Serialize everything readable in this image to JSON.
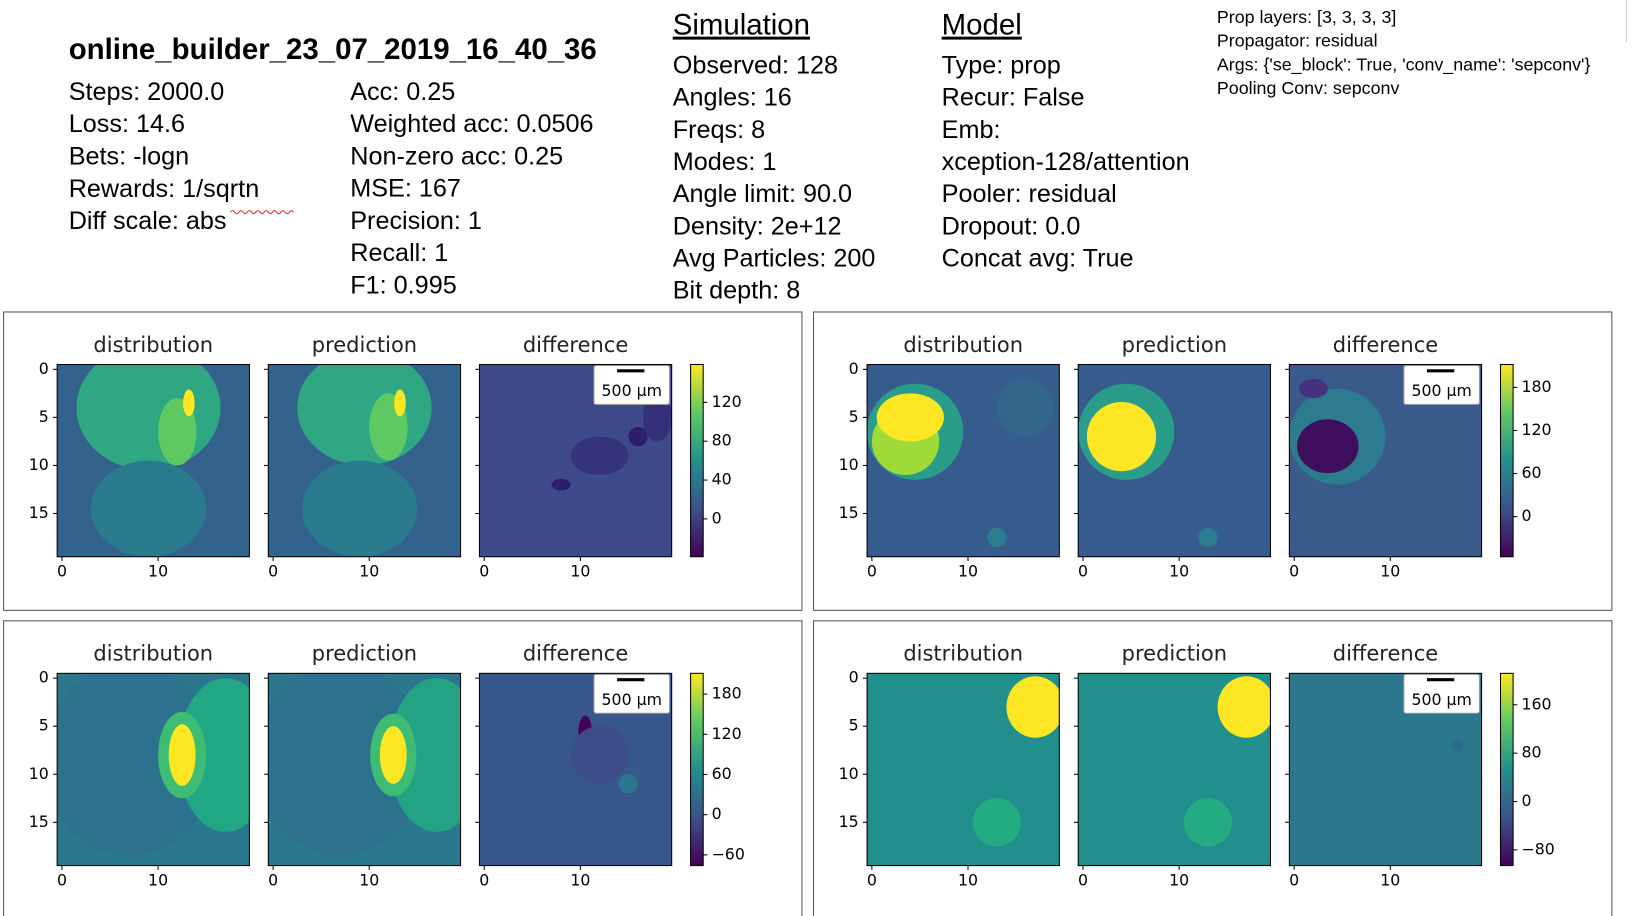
{
  "header": {
    "title": "online_builder_23_07_2019_16_40_36"
  },
  "training": [
    "Steps: 2000.0",
    "Loss: 14.6",
    "Bets: -logn",
    "Rewards: 1/sqrtn",
    "Diff scale: abs"
  ],
  "metrics": [
    "Acc: 0.25",
    "Weighted acc: 0.0506",
    "Non-zero acc: 0.25",
    "MSE: 167",
    "Precision: 1",
    "Recall: 1",
    "F1: 0.995"
  ],
  "simulation": {
    "heading": "Simulation",
    "items": [
      "Observed: 128",
      "Angles: 16",
      "Freqs: 8",
      "Modes: 1",
      "Angle limit: 90.0",
      "Density: 2e+12",
      "Avg Particles: 200",
      "Bit depth: 8"
    ]
  },
  "model": {
    "heading": "Model",
    "items": [
      "Type: prop",
      "Recur: False",
      "Emb:",
      "xception-128/attention",
      "Pooler: residual",
      "Dropout: 0.0",
      "Concat avg: True"
    ]
  },
  "prop_info": [
    "Prop layers: [3, 3, 3, 3]",
    "Propagator: residual",
    "Args: {'se_block': True, 'conv_name': 'sepconv'}",
    "Pooling Conv: sepconv"
  ],
  "panels": [
    {
      "titles": [
        "distribution",
        "prediction",
        "difference"
      ],
      "xlim": [
        -0.5,
        19.5
      ],
      "ylim": [
        19.5,
        -0.5
      ],
      "xticks": [
        0,
        10
      ],
      "yticks": [
        0,
        5,
        10,
        15
      ],
      "colorbar": {
        "lim": [
          -39,
          159
        ],
        "ticks": [
          0,
          40,
          80,
          120
        ]
      },
      "scale_label": "500 µm"
    },
    {
      "titles": [
        "distribution",
        "prediction",
        "difference"
      ],
      "xlim": [
        -0.5,
        19.5
      ],
      "ylim": [
        19.5,
        -0.5
      ],
      "xticks": [
        0,
        10
      ],
      "yticks": [
        0,
        5,
        10,
        15
      ],
      "colorbar": {
        "lim": [
          -56,
          212
        ],
        "ticks": [
          0,
          60,
          120,
          180
        ]
      },
      "scale_label": "500 µm"
    },
    {
      "titles": [
        "distribution",
        "prediction",
        "difference"
      ],
      "xlim": [
        -0.5,
        19.5
      ],
      "ylim": [
        19.5,
        -0.5
      ],
      "xticks": [
        0,
        10
      ],
      "yticks": [
        0,
        5,
        10,
        15
      ],
      "colorbar": {
        "lim": [
          -76,
          211
        ],
        "ticks": [
          {
            "value": -60,
            "label": "−60"
          },
          0,
          60,
          120,
          180
        ]
      },
      "scale_label": "500 µm"
    },
    {
      "titles": [
        "distribution",
        "prediction",
        "difference"
      ],
      "xlim": [
        -0.5,
        19.5
      ],
      "ylim": [
        19.5,
        -0.5
      ],
      "xticks": [
        0,
        10
      ],
      "yticks": [
        0,
        5,
        10,
        15
      ],
      "colorbar": {
        "lim": [
          -106,
          212
        ],
        "ticks": [
          {
            "value": -80,
            "label": "−80"
          },
          0,
          80,
          160
        ]
      },
      "scale_label": "500 µm"
    }
  ]
}
